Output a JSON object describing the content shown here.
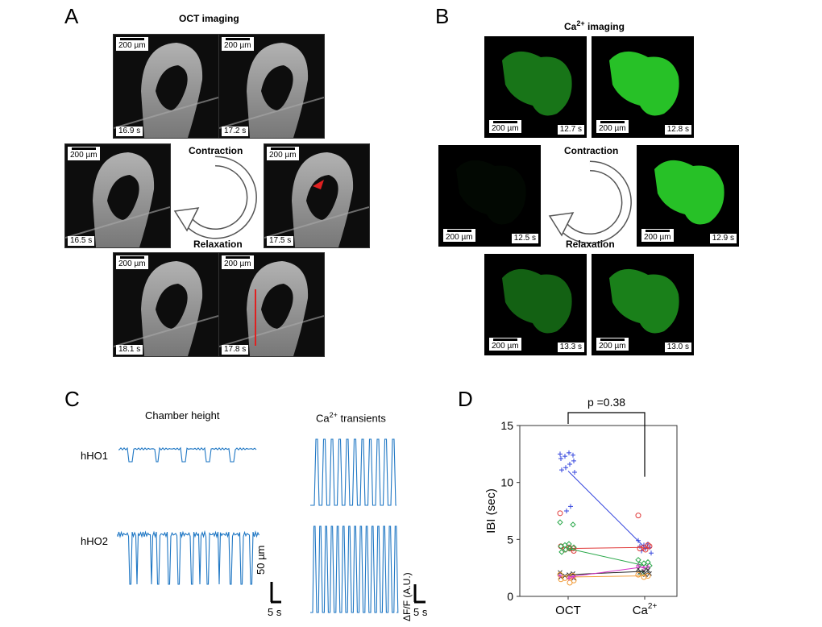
{
  "panels": {
    "A": {
      "label": "A",
      "title": "OCT imaging",
      "scale_label": "200 µm",
      "frames": [
        "16.9 s",
        "17.2 s",
        "16.5 s",
        "17.5 s",
        "18.1 s",
        "17.8 s"
      ],
      "contraction": "Contraction",
      "relaxation": "Relaxation"
    },
    "B": {
      "label": "B",
      "title_prefix": "Ca",
      "title_sup": "2+",
      "title_suffix": " imaging",
      "scale_label": "200 µm",
      "frames": [
        "12.7 s",
        "12.8 s",
        "12.5 s",
        "12.9 s",
        "13.3 s",
        "13.0 s"
      ],
      "contraction": "Contraction",
      "relaxation": "Relaxation"
    },
    "C": {
      "label": "C",
      "col1_title": "Chamber height",
      "col2_title_prefix": "Ca",
      "col2_title_sup": "2+",
      "col2_title_suffix": " transients",
      "row1": "hHO1",
      "row2": "hHO2",
      "scale_y1": "50 µm",
      "scale_x1": "5 s",
      "scale_y2": "ΔF/F (A.U.)",
      "scale_x2": "5 s"
    },
    "D": {
      "label": "D"
    }
  },
  "colors": {
    "contraction": "#f5a623",
    "relaxation": "#b455e0",
    "trace": "#1f77c4"
  },
  "chart_data": {
    "type": "scatter",
    "title": "",
    "ylabel": "IBI (sec)",
    "xlabel": "",
    "categories": [
      "OCT",
      "Ca"
    ],
    "category_sup": [
      "",
      "2+"
    ],
    "ylim": [
      0,
      15
    ],
    "yticks": [
      0,
      5,
      10,
      15
    ],
    "annotation": "p =0.38",
    "series": [
      {
        "name": "hHO-blue",
        "color": "#3344dd",
        "marker": "plus",
        "oct_values": [
          12.5,
          12.4,
          12.6,
          12.3,
          12.1,
          11.9,
          11.6,
          11.3,
          11.1,
          10.9,
          7.9,
          7.5
        ],
        "ca_values": [
          4.9,
          4.6,
          4.5,
          4.4,
          4.3,
          4.2,
          4.0,
          3.8
        ],
        "oct_mean": 11.0,
        "ca_mean": 4.3
      },
      {
        "name": "hHO-red",
        "color": "#e03a3a",
        "marker": "circle",
        "oct_values": [
          7.3,
          4.2,
          4.3,
          4.1,
          4.4,
          4.0,
          4.2
        ],
        "ca_values": [
          7.1,
          4.5,
          4.3,
          4.2,
          4.4,
          4.1
        ],
        "oct_mean": 4.2,
        "ca_mean": 4.3
      },
      {
        "name": "hHO-green",
        "color": "#2aa84a",
        "marker": "diamond",
        "oct_values": [
          6.5,
          6.3,
          4.6,
          4.5,
          4.4,
          4.3,
          4.2,
          4.1,
          3.9
        ],
        "ca_values": [
          3.2,
          3.0,
          2.9,
          2.8,
          2.7,
          2.6,
          2.0
        ],
        "oct_mean": 4.2,
        "ca_mean": 2.7
      },
      {
        "name": "hHO-black",
        "color": "#222222",
        "marker": "x",
        "oct_values": [
          2.1,
          2.0,
          1.9,
          1.8,
          1.7,
          1.6
        ],
        "ca_values": [
          2.4,
          2.3,
          2.2,
          2.1,
          2.0,
          1.9
        ],
        "oct_mean": 1.9,
        "ca_mean": 2.2
      },
      {
        "name": "hHO-orange",
        "color": "#f29c38",
        "marker": "circle",
        "oct_values": [
          1.9,
          1.8,
          1.7,
          1.6,
          1.5,
          1.4,
          1.2
        ],
        "ca_values": [
          1.9,
          1.8,
          1.7
        ],
        "oct_mean": 1.7,
        "ca_mean": 1.8
      },
      {
        "name": "hHO-magenta",
        "color": "#d633c8",
        "marker": "plus",
        "oct_values": [
          1.8,
          1.7,
          1.6
        ],
        "ca_values": [
          2.7,
          2.6,
          2.5
        ],
        "oct_mean": 1.7,
        "ca_mean": 2.6
      }
    ]
  }
}
